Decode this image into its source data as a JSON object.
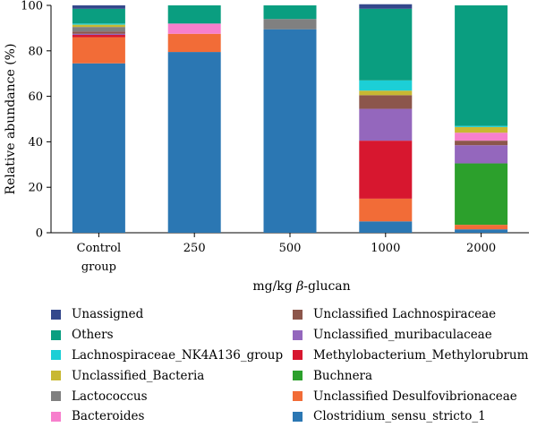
{
  "chart_data": {
    "type": "stacked-bar",
    "ylabel": "Relative abundance (%)",
    "xlabel_prefix": "mg/kg ",
    "xlabel_greek": "β",
    "xlabel_suffix": "-glucan",
    "ylim": [
      0,
      100
    ],
    "yticks": [
      "0",
      "20",
      "40",
      "60",
      "80",
      "100"
    ],
    "categories": [
      {
        "line1": "Control",
        "line2": "group"
      },
      {
        "line1": "250",
        "line2": ""
      },
      {
        "line1": "500",
        "line2": ""
      },
      {
        "line1": "1000",
        "line2": ""
      },
      {
        "line1": "2000",
        "line2": ""
      }
    ],
    "series": [
      {
        "name": "Clostridium_sensu_stricto_1",
        "color": "#2b77b3",
        "values": [
          74.5,
          79.5,
          89.5,
          5.0,
          1.5
        ]
      },
      {
        "name": "Unclassified Desulfovibrionaceae",
        "color": "#f26c37",
        "values": [
          11.5,
          8.0,
          0.0,
          10.0,
          2.0
        ]
      },
      {
        "name": "Buchnera",
        "color": "#2ca02c",
        "values": [
          0.0,
          0.0,
          0.0,
          0.0,
          27.0
        ]
      },
      {
        "name": "Methylobacterium_Methylorubrum",
        "color": "#d7172f",
        "values": [
          1.0,
          0.0,
          0.0,
          25.5,
          0.0
        ]
      },
      {
        "name": "Unclassified_muribaculaceae",
        "color": "#9467bd",
        "values": [
          0.5,
          0.0,
          0.0,
          14.0,
          8.0
        ]
      },
      {
        "name": "Unclassified Lachnospiraceae",
        "color": "#8c564b",
        "values": [
          1.0,
          0.0,
          0.0,
          6.0,
          2.0
        ]
      },
      {
        "name": "Bacteroides",
        "color": "#f77fcd",
        "values": [
          0.0,
          4.5,
          0.0,
          0.0,
          3.5
        ]
      },
      {
        "name": "Lactococcus",
        "color": "#808080",
        "values": [
          2.0,
          0.0,
          4.5,
          0.0,
          0.0
        ]
      },
      {
        "name": "Unclassified_Bacteria",
        "color": "#c8b832",
        "values": [
          1.0,
          0.0,
          0.0,
          2.0,
          2.5
        ]
      },
      {
        "name": "Lachnospiraceae_NK4A136_group",
        "color": "#1ccfd6",
        "values": [
          0.5,
          0.0,
          0.0,
          4.5,
          0.5
        ]
      },
      {
        "name": "Others",
        "color": "#0a9e80",
        "values": [
          6.5,
          8.0,
          6.0,
          31.5,
          53.0
        ]
      },
      {
        "name": "Unassigned",
        "color": "#34488c",
        "values": [
          1.5,
          0.0,
          0.0,
          2.0,
          0.0
        ]
      }
    ],
    "legend_left": [
      "Unassigned",
      "Others",
      "Lachnospiraceae_NK4A136_group",
      "Unclassified_Bacteria",
      "Lactococcus",
      "Bacteroides"
    ],
    "legend_right": [
      "Unclassified Lachnospiraceae",
      "Unclassified_muribaculaceae",
      "Methylobacterium_Methylorubrum",
      "Buchnera",
      "Unclassified Desulfovibrionaceae",
      "Clostridium_sensu_stricto_1"
    ],
    "grid": false,
    "legend_position": "bottom"
  }
}
